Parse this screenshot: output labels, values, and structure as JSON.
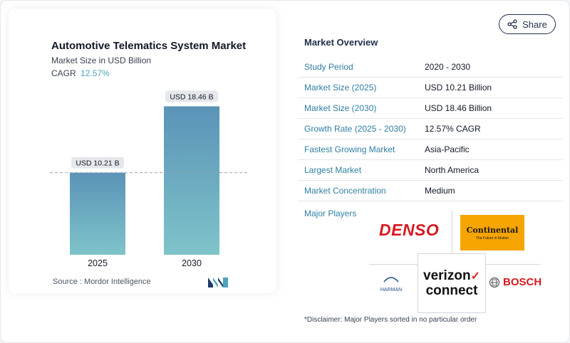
{
  "chart_data": {
    "type": "bar",
    "title": "Automotive Telematics System Market",
    "subtitle": "Market Size in USD Billion",
    "cagr_label": "CAGR",
    "cagr_value": "12.57%",
    "categories": [
      "2025",
      "2030"
    ],
    "values": [
      10.21,
      18.46
    ],
    "data_labels": [
      "USD 10.21 B",
      "USD 18.46 B"
    ],
    "ylim": [
      0,
      20
    ],
    "grid": false,
    "colors": {
      "bar_top": "#5b93b8",
      "bar_bottom": "#7ec4c9",
      "reference_line": "#9ca3af"
    }
  },
  "source": {
    "label": "Source :",
    "value": "Mordor Intelligence"
  },
  "share": {
    "label": "Share",
    "icon": "share-icon"
  },
  "overview": {
    "title": "Market Overview",
    "rows": [
      {
        "label": "Study Period",
        "value": "2020 - 2030"
      },
      {
        "label": "Market Size (2025)",
        "value": "USD 10.21 Billion"
      },
      {
        "label": "Market Size (2030)",
        "value": "USD 18.46 Billion"
      },
      {
        "label": "Growth Rate (2025 - 2030)",
        "value": "12.57% CAGR"
      },
      {
        "label": "Fastest Growing Market",
        "value": "Asia-Pacific"
      },
      {
        "label": "Largest Market",
        "value": "North America"
      },
      {
        "label": "Market Concentration",
        "value": "Medium"
      }
    ]
  },
  "players": {
    "title": "Major Players",
    "denso": "DENSO",
    "continental": "Continental",
    "continental_tagline": "The Future in Motion",
    "verizon_top": "verizon",
    "verizon_bottom": "connect",
    "harman": "HARMAN",
    "bosch": "BOSCH"
  },
  "disclaimer": "*Disclaimer: Major Players sorted in no particular order"
}
